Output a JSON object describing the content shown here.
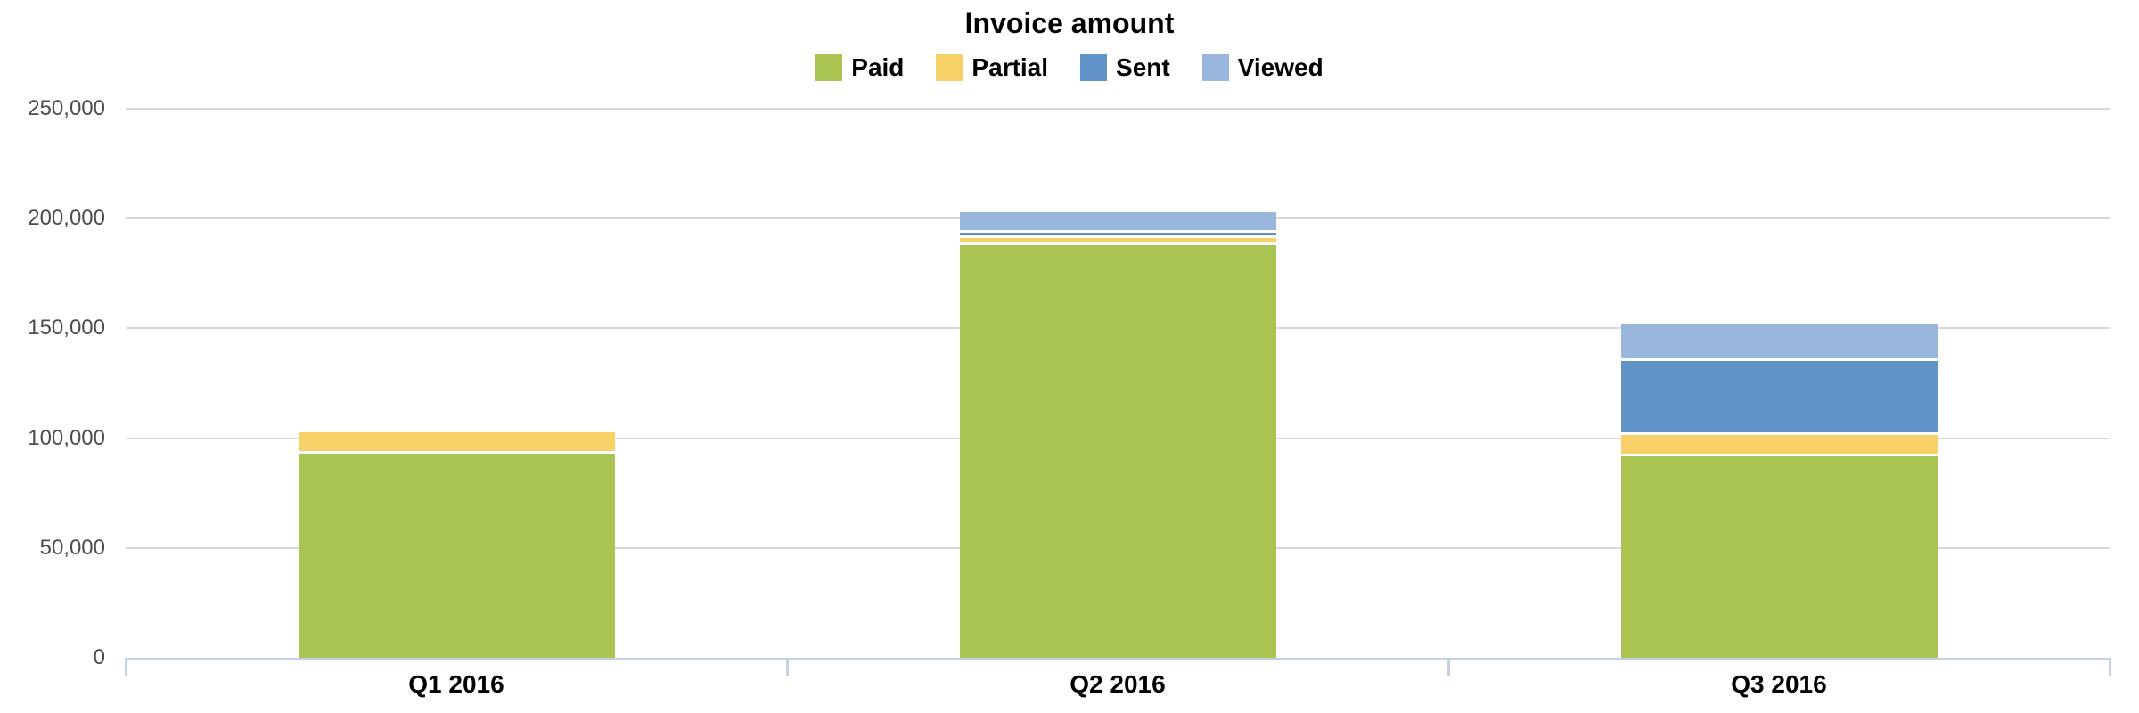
{
  "chart_data": {
    "type": "bar",
    "stacked": true,
    "title": "Invoice amount",
    "categories": [
      "Q1 2016",
      "Q2 2016",
      "Q3 2016"
    ],
    "series": [
      {
        "name": "Paid",
        "color": "#a9c451",
        "values": [
          94000,
          189000,
          93000
        ]
      },
      {
        "name": "Partial",
        "color": "#f7d168",
        "values": [
          10000,
          3500,
          9500
        ]
      },
      {
        "name": "Sent",
        "color": "#6293c8",
        "values": [
          0,
          2500,
          34000
        ]
      },
      {
        "name": "Viewed",
        "color": "#99b7dd",
        "values": [
          0,
          9000,
          17000
        ]
      }
    ],
    "xlabel": "",
    "ylabel": "",
    "ylim": [
      0,
      250000
    ],
    "ytick_step": 50000,
    "ytick_labels": [
      "0",
      "50,000",
      "100,000",
      "150,000",
      "200,000",
      "250,000"
    ],
    "grid": true,
    "grid_color": "#d9d9d9",
    "axis_line_color": "#c4d1e4",
    "ytick_label_color": "#4c4c4c",
    "xtick_label_color": "#000000",
    "legend_position": "top-center"
  }
}
